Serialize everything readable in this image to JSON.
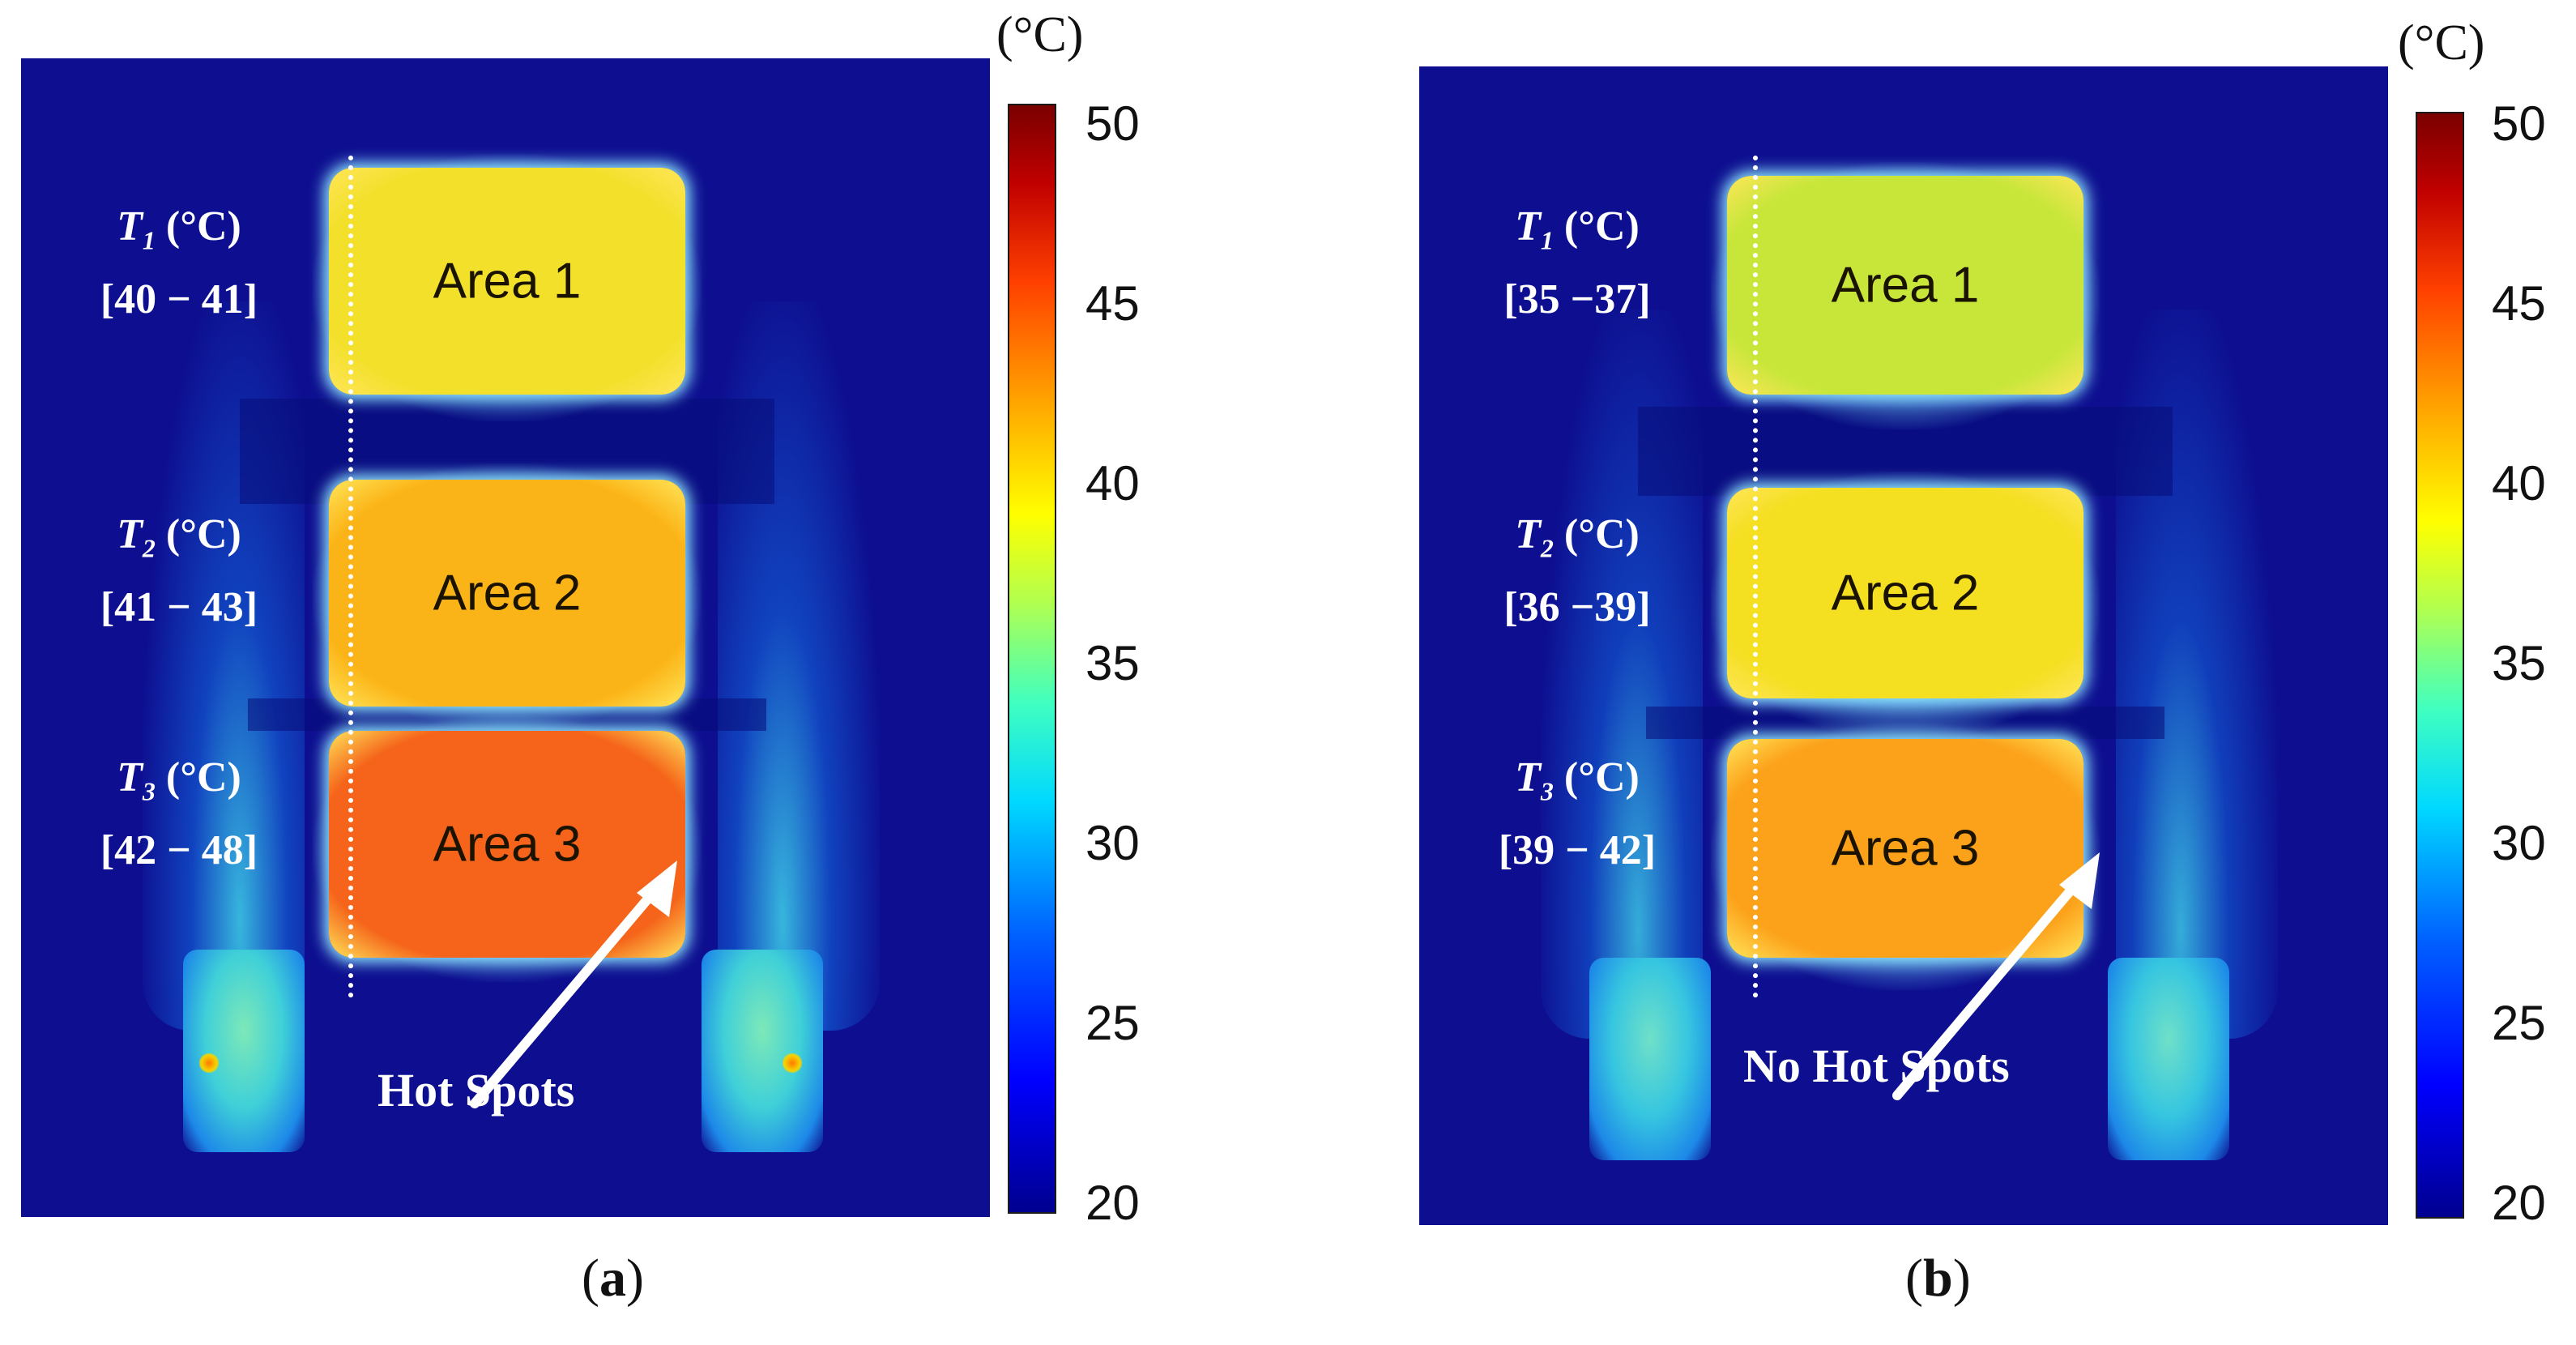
{
  "panels": [
    {
      "id": "a",
      "caption_letter": "a",
      "areas": [
        {
          "label": "Area 1",
          "t_symbol": "T",
          "t_sub": "1",
          "t_unit": "(°C)",
          "t_range": "[40  −  41]",
          "color": "#f2e02a"
        },
        {
          "label": "Area 2",
          "t_symbol": "T",
          "t_sub": "2",
          "t_unit": "(°C)",
          "t_range": "[41  −  43]",
          "color": "#fbb417"
        },
        {
          "label": "Area 3",
          "t_symbol": "T",
          "t_sub": "3",
          "t_unit": "(°C)",
          "t_range": "[42  −  48]",
          "color": "#f5641a"
        }
      ],
      "callout": "Hot Spots"
    },
    {
      "id": "b",
      "caption_letter": "b",
      "areas": [
        {
          "label": "Area 1",
          "t_symbol": "T",
          "t_sub": "1",
          "t_unit": "(°C)",
          "t_range": "[35 −37]",
          "color": "#c8e63a"
        },
        {
          "label": "Area 2",
          "t_symbol": "T",
          "t_sub": "2",
          "t_unit": "(°C)",
          "t_range": "[36 −39]",
          "color": "#f4df20"
        },
        {
          "label": "Area 3",
          "t_symbol": "T",
          "t_sub": "3",
          "t_unit": "(°C)",
          "t_range": "[39 − 42]",
          "color": "#fca11a"
        }
      ],
      "callout": "No Hot Spots"
    }
  ],
  "colorbar": {
    "unit": "(°C)",
    "ticks": [
      "50",
      "45",
      "40",
      "35",
      "30",
      "25",
      "20"
    ],
    "min": 20,
    "max": 50
  },
  "colors": {
    "background": "#0d0f90",
    "text_on_map": "#ffffff"
  }
}
